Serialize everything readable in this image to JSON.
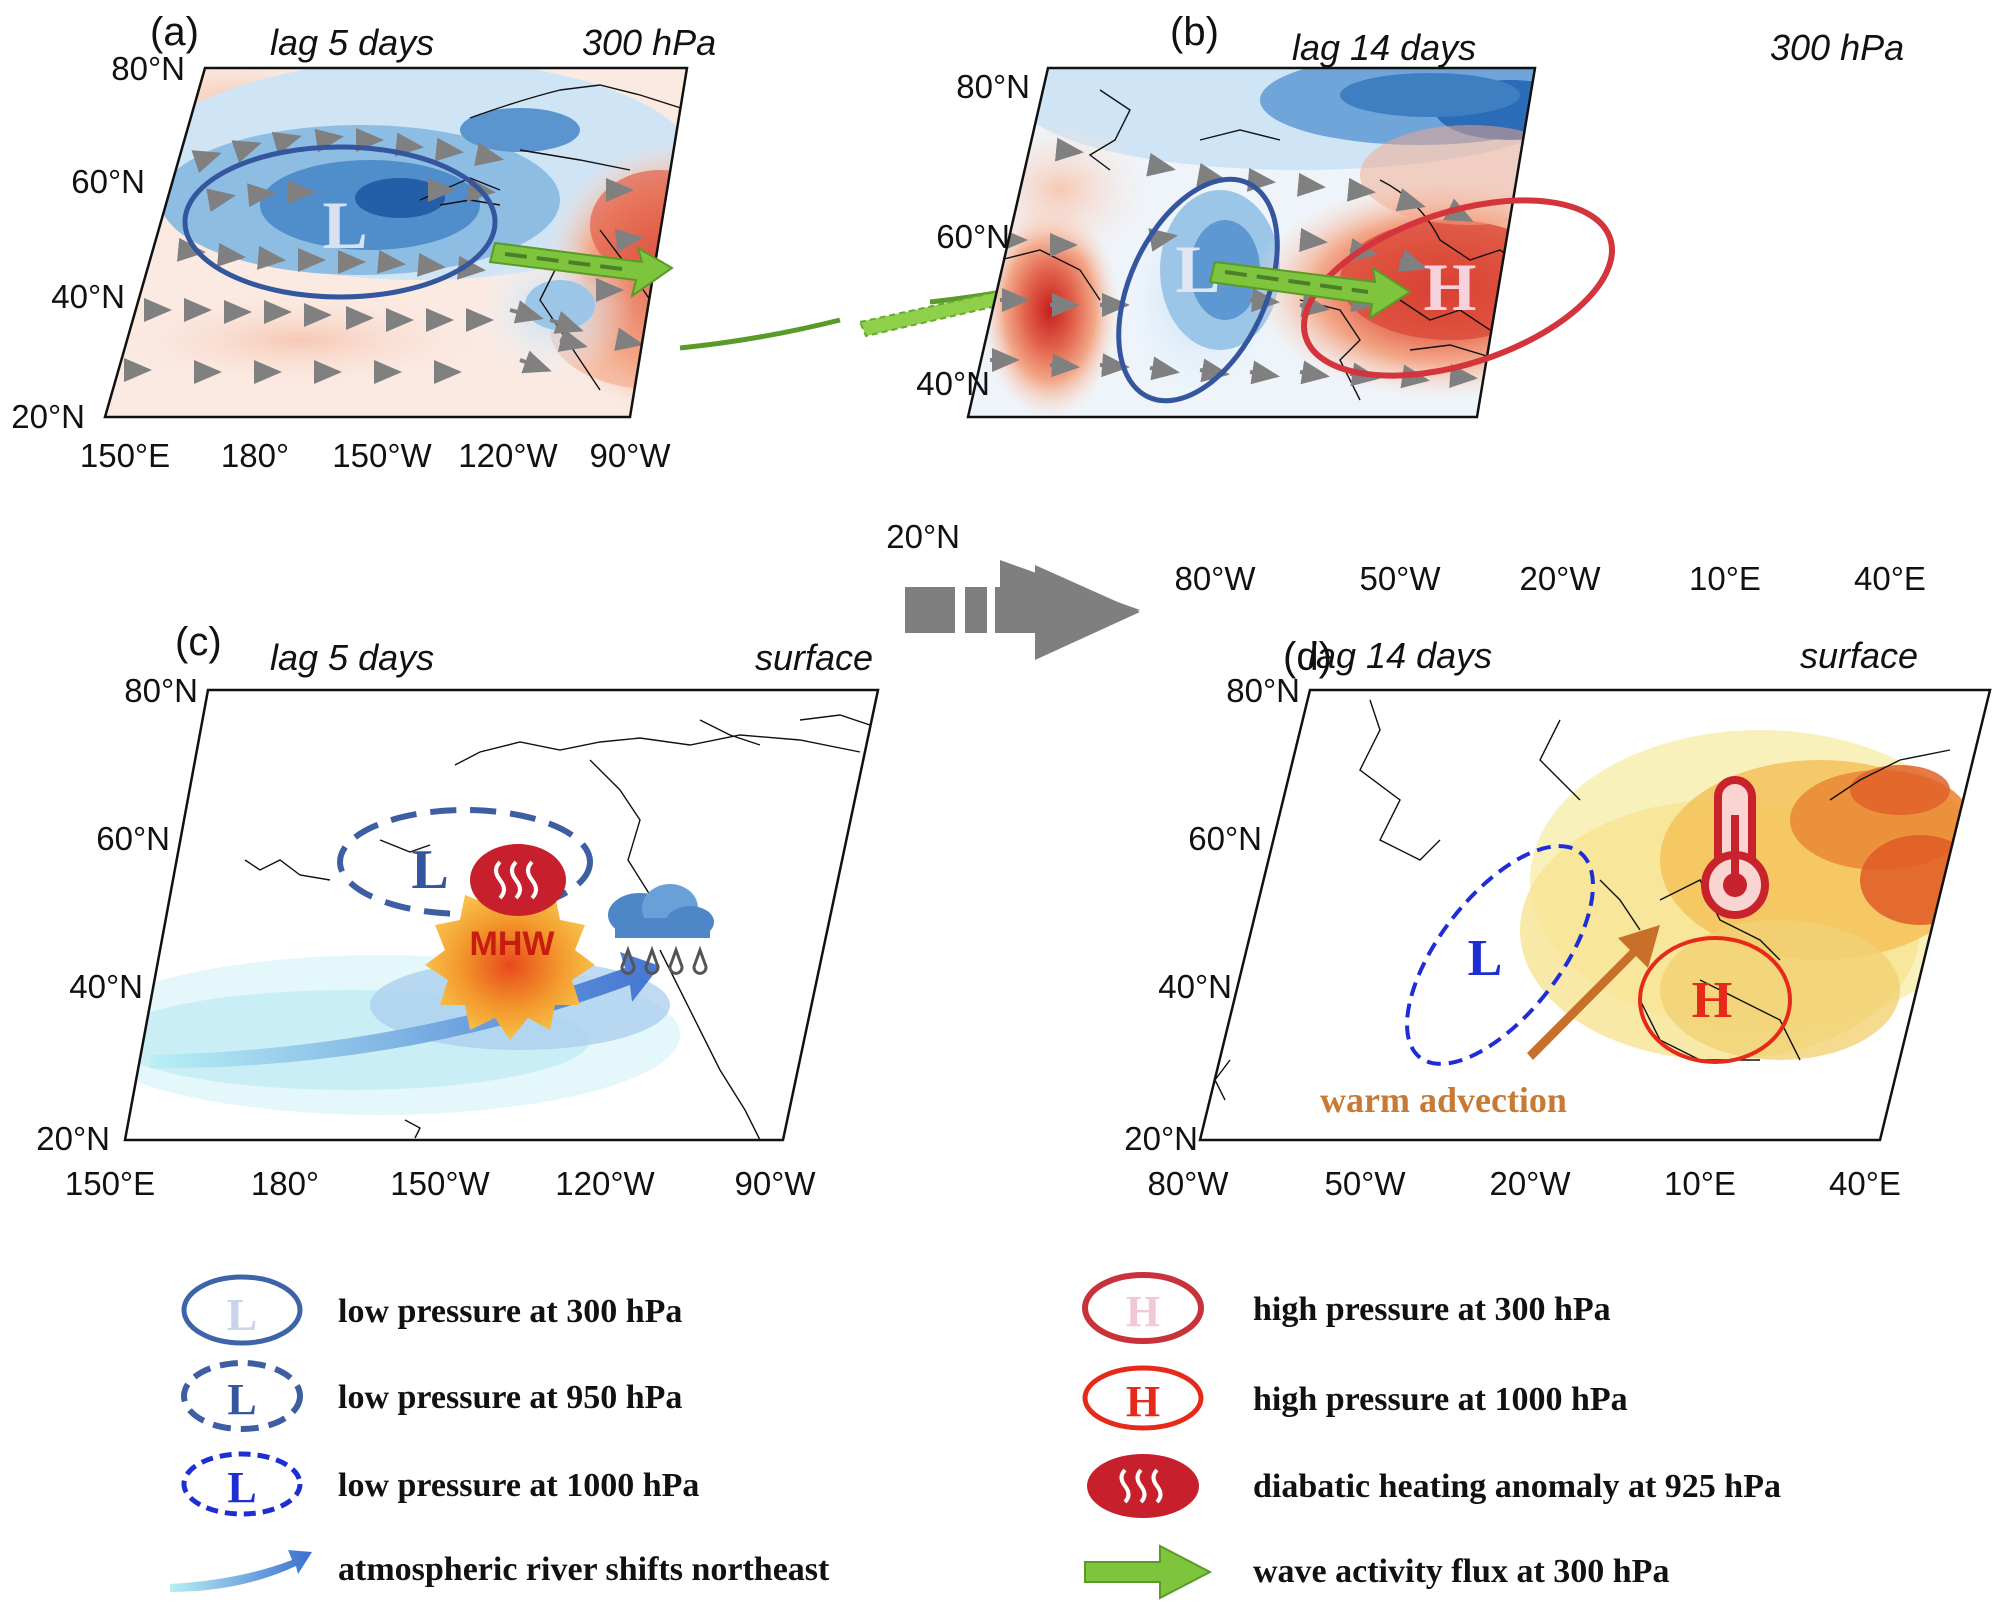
{
  "panels": {
    "a": {
      "label": "(a)",
      "lag": "lag 5 days",
      "level": "300 hPa",
      "lat_ticks": [
        "80°N",
        "60°N",
        "40°N",
        "20°N"
      ],
      "lon_ticks": [
        "150°E",
        "180°",
        "150°W",
        "120°W",
        "90°W"
      ],
      "symbols": [
        "L"
      ]
    },
    "b": {
      "label": "(b)",
      "lag": "lag 14 days",
      "level": "300 hPa",
      "lat_ticks": [
        "80°N",
        "60°N",
        "40°N",
        "20°N"
      ],
      "lon_ticks": [
        "80°W",
        "50°W",
        "20°W",
        "10°E",
        "40°E"
      ],
      "symbols": [
        "L",
        "H"
      ]
    },
    "c": {
      "label": "(c)",
      "lag": "lag 5 days",
      "level": "surface",
      "lat_ticks": [
        "80°N",
        "60°N",
        "40°N",
        "20°N"
      ],
      "lon_ticks": [
        "150°E",
        "180°",
        "150°W",
        "120°W",
        "90°W"
      ],
      "symbols": [
        "L"
      ],
      "mhw_label": "MHW"
    },
    "d": {
      "label": "(d)",
      "lag": "lag 14 days",
      "level": "surface",
      "lat_ticks": [
        "80°N",
        "60°N",
        "40°N",
        "20°N"
      ],
      "lon_ticks": [
        "80°W",
        "50°W",
        "20°W",
        "10°E",
        "40°E"
      ],
      "symbols": [
        "L",
        "H"
      ],
      "annotation": "warm advection"
    }
  },
  "legend": {
    "left": [
      {
        "icon": "solid-ellipse-L",
        "symbol": "L",
        "text": "low pressure at 300 hPa"
      },
      {
        "icon": "dashed-ellipse-L",
        "symbol": "L",
        "text": "low pressure at 950 hPa"
      },
      {
        "icon": "dotted-ellipse-L",
        "symbol": "L",
        "text": "low pressure at 1000 hPa"
      },
      {
        "icon": "blue-arrow",
        "text": "atmospheric river shifts northeast"
      }
    ],
    "right": [
      {
        "icon": "solid-ellipse-H",
        "symbol": "H",
        "text": "high pressure at 300 hPa"
      },
      {
        "icon": "red-ellipse-H",
        "symbol": "H",
        "text": "high pressure at 1000 hPa"
      },
      {
        "icon": "heating-badge",
        "text": "diabatic heating anomaly at 925 hPa"
      },
      {
        "icon": "green-arrow",
        "text": "wave activity flux at 300 hPa"
      }
    ]
  },
  "colors": {
    "low": "#3d63a8",
    "low_dark": "#1c3f86",
    "high": "#d02a2a",
    "high_fill_dark": "#d62e2a",
    "low_fill_dark": "#2a6cb8",
    "flux": "#7ec43d",
    "warm": "#c87a35",
    "ar": "#4e8ed6"
  }
}
